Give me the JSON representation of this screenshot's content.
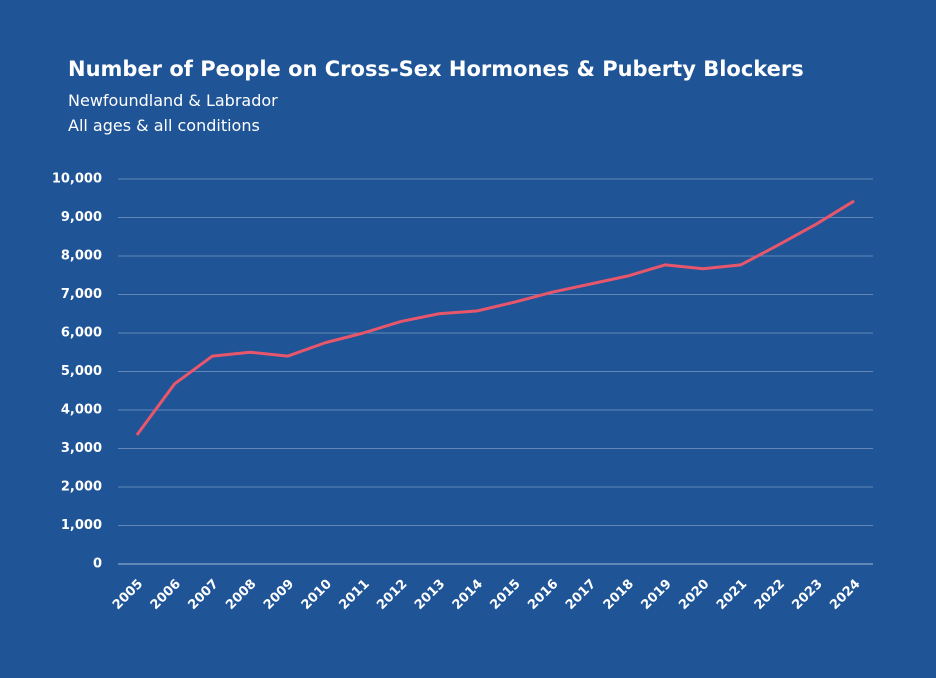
{
  "chart_data": {
    "type": "line",
    "title": "Number of People on Cross-Sex Hormones & Puberty Blockers",
    "subtitle": [
      "Newfoundland & Labrador",
      "All ages & all conditions"
    ],
    "categories": [
      "2005",
      "2006",
      "2007",
      "2008",
      "2009",
      "2010",
      "2011",
      "2012",
      "2013",
      "2014",
      "2015",
      "2016",
      "2017",
      "2018",
      "2019",
      "2020",
      "2021",
      "2022",
      "2023",
      "2024"
    ],
    "values": [
      3350,
      4680,
      5400,
      5500,
      5400,
      5750,
      6000,
      6300,
      6500,
      6570,
      6800,
      7060,
      7270,
      7480,
      7770,
      7670,
      7770,
      8290,
      8830,
      9430
    ],
    "color": "#e8566b",
    "ylim": [
      0,
      10000
    ],
    "yticks": [
      0,
      {
        "value": 1000,
        "label": "1,000"
      },
      {
        "value": 2000,
        "label": "2,000"
      },
      {
        "value": 3000,
        "label": "3,000"
      },
      {
        "value": 4000,
        "label": "4,000"
      },
      {
        "value": 5000,
        "label": "5,000"
      },
      {
        "value": 6000,
        "label": "6,000"
      },
      {
        "value": 7000,
        "label": "7,000"
      },
      {
        "value": 8000,
        "label": "8,000"
      },
      {
        "value": 9000,
        "label": "9,000"
      },
      {
        "value": 10000,
        "label": "10,000"
      }
    ],
    "grid": true
  }
}
